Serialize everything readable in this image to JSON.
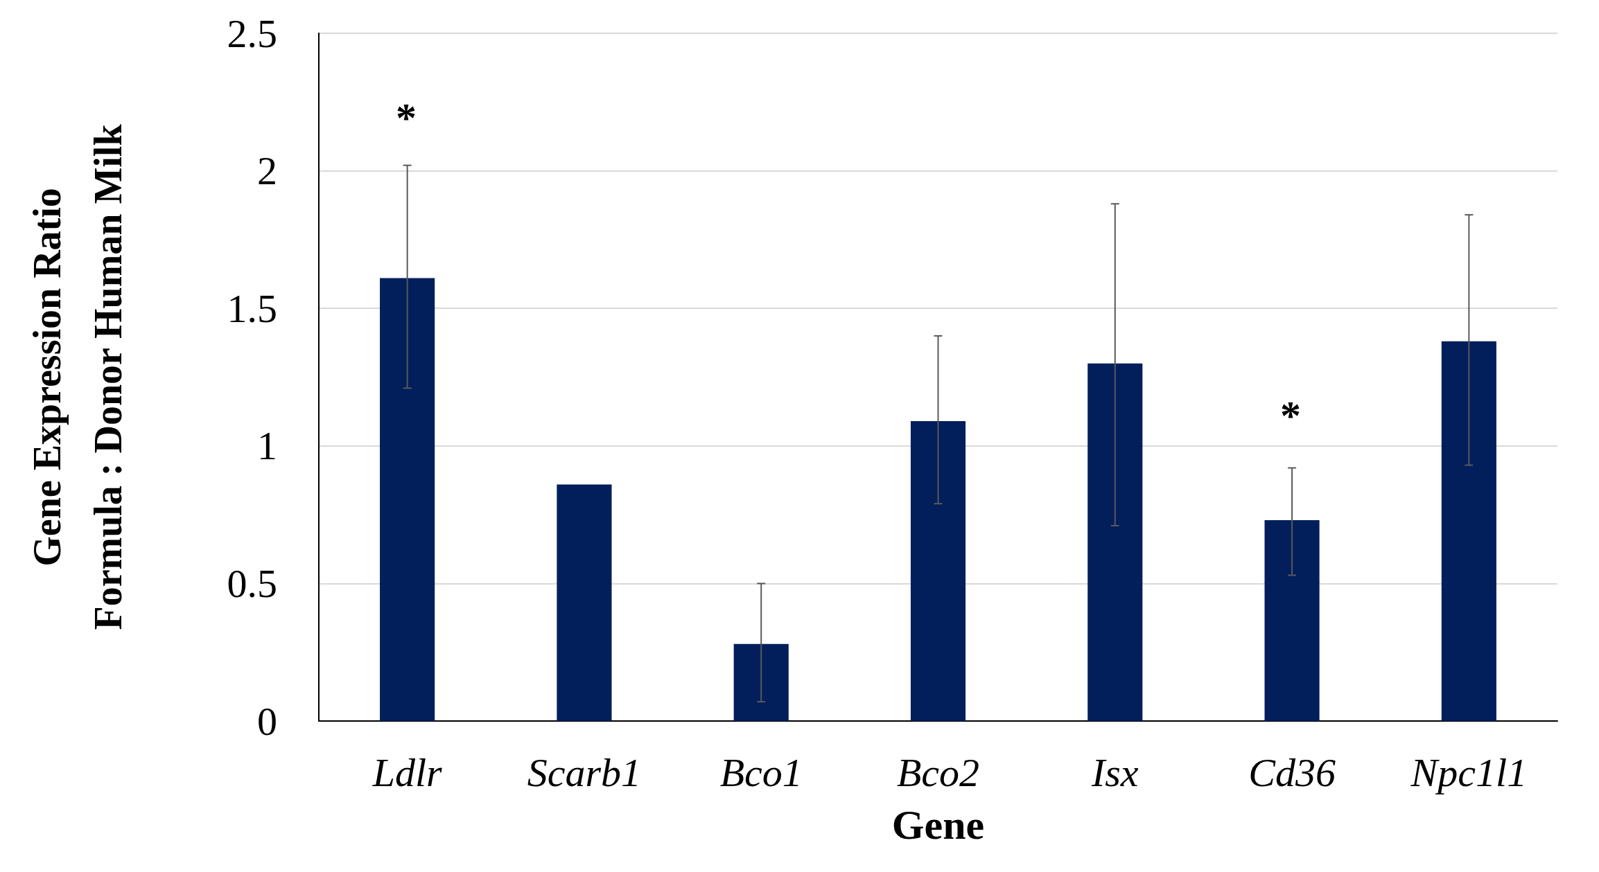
{
  "chart_data": {
    "type": "bar",
    "xlabel": "Gene",
    "ylabel": "Gene Expression Ratio\nFormula : Donor Human Milk",
    "categories": [
      "Ldlr",
      "Scarb1",
      "Bco1",
      "Bco2",
      "Isx",
      "Cd36",
      "Npc1l1"
    ],
    "values": [
      1.61,
      0.86,
      0.28,
      1.09,
      1.3,
      0.73,
      1.38
    ],
    "errors": [
      [
        1.21,
        2.02
      ],
      null,
      [
        0.07,
        0.5
      ],
      [
        0.79,
        1.4
      ],
      [
        0.71,
        1.88
      ],
      [
        0.53,
        0.92
      ],
      [
        0.93,
        1.84
      ]
    ],
    "color": "#021f5c",
    "ylim": [
      0,
      2.5
    ],
    "yticks": [
      0,
      0.5,
      1,
      1.5,
      2,
      2.5
    ],
    "grid": "y",
    "annotations": [
      "*",
      "*"
    ]
  }
}
